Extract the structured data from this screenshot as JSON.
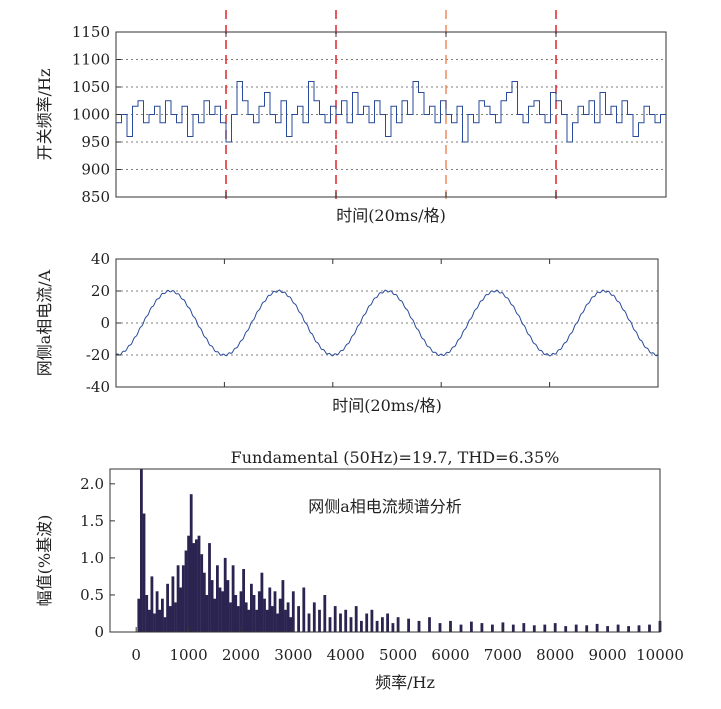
{
  "chart_data": [
    {
      "type": "line",
      "xlabel": "时间(20ms/格)",
      "ylabel": "开关频率/Hz",
      "ylim": [
        850,
        1150
      ],
      "yticks": [
        850,
        900,
        950,
        1000,
        1050,
        1100,
        1150
      ],
      "grid": "horizontal dotted",
      "xlim": [
        0,
        100
      ],
      "x_unit_per_division": "20ms",
      "marker_lines_x": [
        20,
        40,
        60,
        80
      ],
      "series": [
        {
          "levels_hz": [
            920,
            950,
            960,
            985,
            1000,
            1015,
            1025,
            1040,
            1060
          ],
          "values": [
            985,
            1000,
            960,
            1015,
            1025,
            985,
            1000,
            1015,
            985,
            1025,
            1000,
            985,
            1015,
            960,
            1000,
            985,
            1025,
            1000,
            1015,
            985,
            950,
            1000,
            1060,
            1025,
            1000,
            985,
            1015,
            1040,
            1000,
            985,
            1025,
            960,
            1000,
            1015,
            985,
            1060,
            1025,
            1000,
            985,
            1015,
            1000,
            1025,
            985,
            1040,
            1000,
            1015,
            985,
            1025,
            1000,
            960,
            1015,
            985,
            1025,
            1000,
            1060,
            1040,
            1000,
            1015,
            985,
            1025,
            1000,
            985,
            1015,
            950,
            1000,
            985,
            1025,
            1015,
            1000,
            985,
            1025,
            1040,
            1060,
            1000,
            985,
            1015,
            1025,
            1000,
            985,
            1040,
            1025,
            1000,
            950,
            985,
            1015,
            1000,
            1025,
            985,
            1040,
            1000,
            1015,
            985,
            1025,
            1000,
            960,
            985,
            1015,
            1000,
            985,
            1000
          ]
        }
      ]
    },
    {
      "type": "line",
      "xlabel": "时间(20ms/格)",
      "ylabel": "网侧a相电流/A",
      "ylim": [
        -40,
        40
      ],
      "yticks": [
        -40,
        -20,
        0,
        20,
        40
      ],
      "grid": "horizontal dotted",
      "xlim": [
        0,
        100
      ],
      "series": [
        {
          "amplitude": 20,
          "frequency_hz": 50,
          "cycles": 5
        }
      ]
    },
    {
      "type": "bar",
      "title": "Fundamental (50Hz)=19.7, THD=6.35%",
      "annotation": "网侧a相电流频谱分析",
      "xlabel": "频率/Hz",
      "ylabel": "幅值(%基波)",
      "xlim": [
        -500,
        10000
      ],
      "ylim": [
        0,
        2.2
      ],
      "xticks": [
        0,
        1000,
        2000,
        3000,
        4000,
        5000,
        6000,
        7000,
        8000,
        9000,
        10000
      ],
      "yticks": [
        0,
        0.5,
        1.0,
        1.5,
        2.0
      ],
      "ytick_labels": [
        "0",
        "0.5",
        "1.0",
        "1.5",
        "2.0"
      ],
      "fundamental_hz": 50,
      "fundamental": 19.7,
      "thd_percent": 6.35,
      "series": [
        {
          "x": [
            50,
            100,
            150,
            200,
            250,
            300,
            350,
            400,
            450,
            500,
            550,
            600,
            650,
            700,
            750,
            800,
            850,
            900,
            950,
            1000,
            1050,
            1100,
            1150,
            1200,
            1250,
            1300,
            1350,
            1400,
            1450,
            1500,
            1550,
            1600,
            1650,
            1700,
            1750,
            1800,
            1850,
            1900,
            1950,
            2000,
            2050,
            2100,
            2150,
            2200,
            2250,
            2300,
            2350,
            2400,
            2450,
            2500,
            2550,
            2600,
            2650,
            2700,
            2750,
            2800,
            2850,
            2900,
            2950,
            3000,
            3100,
            3200,
            3300,
            3400,
            3500,
            3600,
            3700,
            3800,
            3900,
            4000,
            4100,
            4200,
            4300,
            4400,
            4500,
            4600,
            4700,
            4800,
            4900,
            5000,
            5200,
            5400,
            5600,
            5800,
            6000,
            6200,
            6400,
            6600,
            6800,
            7000,
            7200,
            7400,
            7600,
            7800,
            8000,
            8200,
            8400,
            8600,
            8800,
            9000,
            9200,
            9400,
            9600,
            9800,
            10000
          ],
          "values": [
            0.45,
            2.2,
            1.6,
            0.5,
            0.3,
            0.75,
            0.25,
            0.55,
            0.3,
            0.45,
            0.2,
            0.65,
            0.35,
            0.75,
            0.4,
            0.9,
            0.6,
            0.9,
            1.1,
            1.3,
            1.86,
            1.2,
            1.25,
            1.3,
            1.05,
            0.8,
            0.5,
            1.2,
            0.7,
            0.45,
            0.9,
            0.6,
            0.55,
            1.0,
            0.7,
            0.4,
            0.9,
            0.5,
            0.35,
            0.55,
            0.85,
            0.4,
            0.3,
            0.65,
            0.5,
            0.3,
            0.55,
            0.8,
            0.45,
            0.3,
            0.6,
            0.35,
            0.55,
            0.25,
            0.45,
            0.7,
            0.3,
            0.4,
            0.2,
            0.55,
            0.35,
            0.6,
            0.25,
            0.4,
            0.3,
            0.5,
            0.2,
            0.35,
            0.25,
            0.3,
            0.2,
            0.35,
            0.15,
            0.25,
            0.3,
            0.15,
            0.2,
            0.25,
            0.12,
            0.2,
            0.18,
            0.15,
            0.2,
            0.12,
            0.15,
            0.1,
            0.14,
            0.12,
            0.1,
            0.13,
            0.1,
            0.12,
            0.09,
            0.1,
            0.12,
            0.08,
            0.1,
            0.09,
            0.11,
            0.08,
            0.1,
            0.08,
            0.09,
            0.1,
            0.15
          ]
        }
      ]
    }
  ]
}
